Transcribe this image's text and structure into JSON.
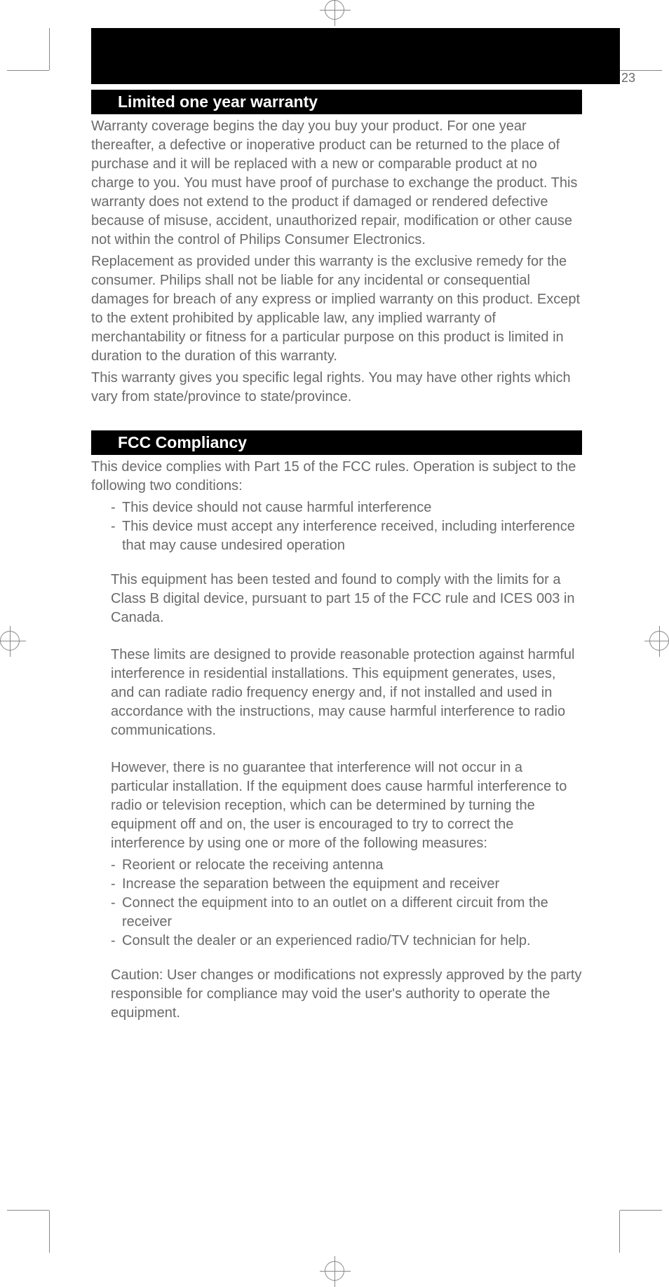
{
  "page_number": "23",
  "sections": {
    "warranty": {
      "heading": "Limited one year warranty",
      "paragraphs": [
        "Warranty coverage begins the day you buy your product. For one year thereafter, a defective or inoperative product can be returned to the place of purchase and it will be replaced with a new or comparable product at no charge to you. You must have proof of purchase to exchange the product. This warranty does not extend to the product if damaged or rendered defective because of misuse, accident, unauthorized repair, modification or other cause not within the control of Philips Consumer Electronics.",
        "Replacement as provided under this warranty is the exclusive remedy for the consumer. Philips shall not be liable for any incidental or consequential damages for breach of any express or implied warranty on this product. Except to the extent prohibited by applicable law, any implied warranty of merchantability or fitness for a particular purpose on this product is limited in duration to the duration of this warranty.",
        "This warranty gives you specific legal rights. You may have other rights which vary from state/province to state/province."
      ]
    },
    "fcc": {
      "heading": "FCC Compliancy",
      "intro": "This device complies with Part 15 of the FCC rules. Operation is subject to the following two conditions:",
      "intro_list": [
        "This device should not cause harmful interference",
        "This device must accept any interference received, including interference that may cause undesired operation"
      ],
      "p1": "This equipment has been tested and found to comply with the limits for a Class B digital device, pursuant to part 15 of the FCC rule and ICES 003 in Canada.",
      "p2": "These limits are designed to provide reasonable protection against harmful interference in residential installations. This equipment generates, uses, and can radiate radio frequency energy and, if not installed and used in accordance with the instructions, may cause harmful interference to radio communications.",
      "p3": "However, there is no guarantee that interference will not occur in a particular installation. If the equipment does cause harmful interference to radio or television reception, which can be determined by turning the equipment off and on, the user is encouraged to try to correct the interference by using one or more of the following measures:",
      "measures": [
        "Reorient or relocate the receiving antenna",
        "Increase the separation between the equipment and receiver",
        "Connect the equipment into to an outlet on a different circuit from the receiver",
        "Consult the dealer or an experienced radio/TV technician for help."
      ],
      "caution": "Caution: User changes or modifications not expressly approved by the party responsible for compliance may void the user's authority to operate the equipment."
    }
  },
  "colors": {
    "text": "#6a6a6a",
    "heading_bg": "#000000",
    "heading_fg": "#ffffff",
    "crop_mark": "#888888"
  }
}
